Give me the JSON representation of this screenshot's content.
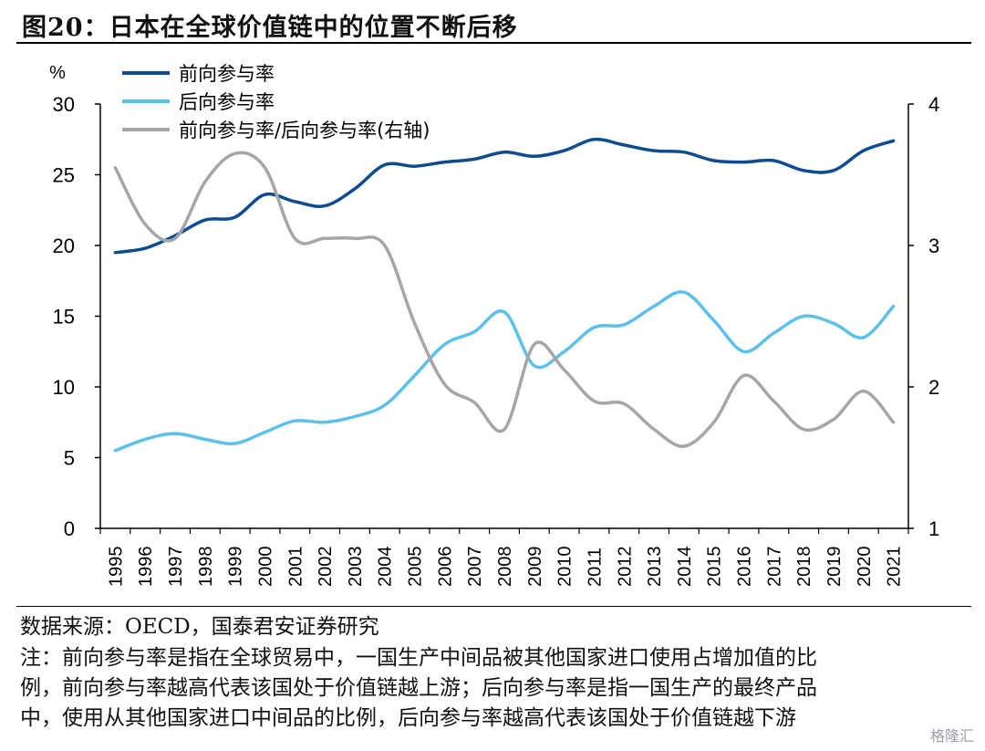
{
  "header": {
    "title": "图20：日本在全球价值链中的位置不断后移"
  },
  "chart_data": {
    "type": "line",
    "x": [
      1995,
      1996,
      1997,
      1998,
      1999,
      2000,
      2001,
      2002,
      2003,
      2004,
      2005,
      2006,
      2007,
      2008,
      2009,
      2010,
      2011,
      2012,
      2013,
      2014,
      2015,
      2016,
      2017,
      2018,
      2019,
      2020,
      2021
    ],
    "y_left": {
      "unit": "%",
      "ylim": [
        0,
        30
      ],
      "ticks": [
        0,
        5,
        10,
        15,
        20,
        25,
        30
      ]
    },
    "y_right": {
      "ylim": [
        1,
        4
      ],
      "ticks": [
        1,
        2,
        3,
        4
      ]
    },
    "series": [
      {
        "name": "前向参与率",
        "axis": "left",
        "color": "#0e4c92",
        "values": [
          19.5,
          19.8,
          20.7,
          21.8,
          22.0,
          23.6,
          23.1,
          22.8,
          24.0,
          25.7,
          25.6,
          25.9,
          26.1,
          26.6,
          26.3,
          26.7,
          27.5,
          27.1,
          26.7,
          26.6,
          26.0,
          25.9,
          26.0,
          25.3,
          25.3,
          26.7,
          27.4
        ]
      },
      {
        "name": "后向参与率",
        "axis": "left",
        "color": "#5bc0ec",
        "values": [
          5.5,
          6.3,
          6.7,
          6.3,
          6.0,
          6.8,
          7.6,
          7.5,
          7.9,
          8.7,
          10.8,
          13.0,
          13.9,
          15.3,
          11.5,
          12.5,
          14.2,
          14.4,
          15.7,
          16.7,
          14.7,
          12.5,
          13.8,
          15.0,
          14.5,
          13.5,
          15.7
        ]
      },
      {
        "name": "前向参与率/后向参与率(右轴)",
        "axis": "right",
        "color": "#a6a6a6",
        "values": [
          3.55,
          3.15,
          3.05,
          3.45,
          3.65,
          3.55,
          3.05,
          3.05,
          3.05,
          3.0,
          2.45,
          2.02,
          1.89,
          1.7,
          2.3,
          2.12,
          1.9,
          1.88,
          1.7,
          1.58,
          1.75,
          2.08,
          1.9,
          1.7,
          1.77,
          1.97,
          1.75
        ]
      }
    ],
    "legend": "top-left"
  },
  "footer": {
    "source": "数据来源：OECD，国泰君安证券研究",
    "note_lines": [
      "注：前向参与率是指在全球贸易中，一国生产中间品被其他国家进口使用占增加值的比",
      "例，前向参与率越高代表该国处于价值链越上游；后向参与率是指一国生产的最终产品",
      "中，使用从其他国家进口中间品的比例，后向参与率越高代表该国处于价值链越下游"
    ],
    "watermark": "格隆汇"
  }
}
